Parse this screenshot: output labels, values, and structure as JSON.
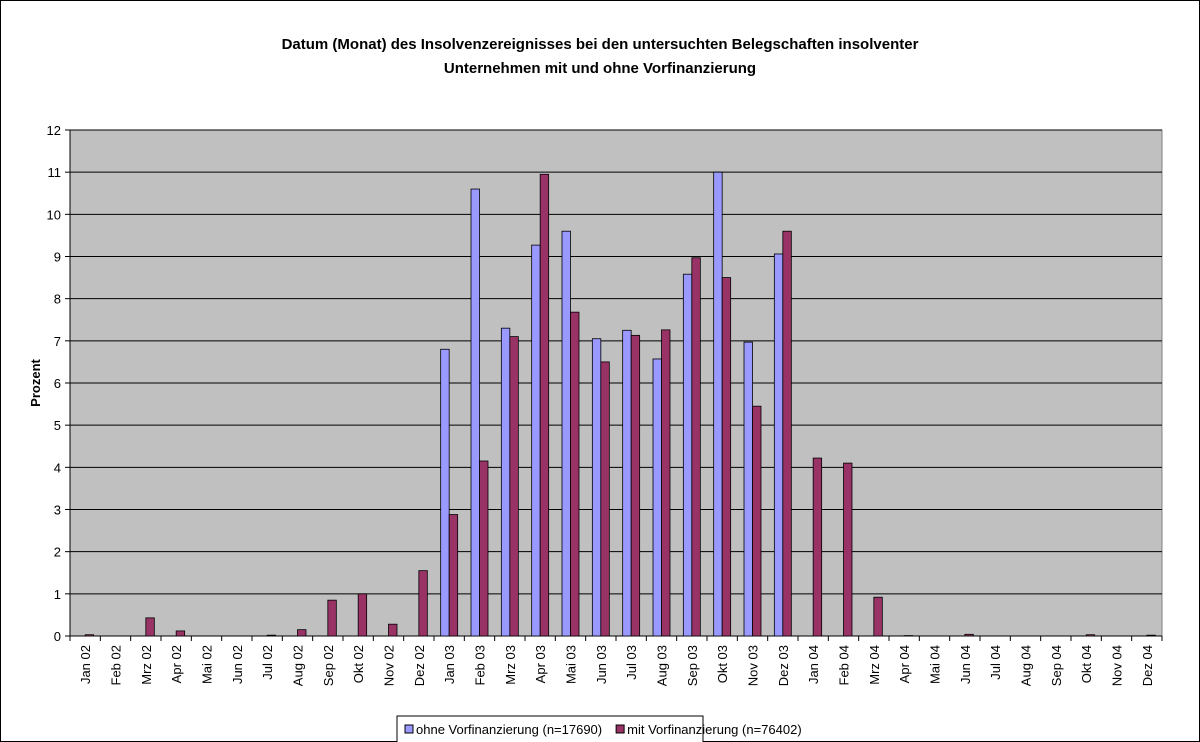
{
  "chart_data": {
    "type": "bar",
    "title": [
      "Datum (Monat) des Insolvenzereignisses bei den untersuchten Belegschaften insolventer",
      "Unternehmen mit und ohne Vorfinanzierung"
    ],
    "y_label": "Prozent",
    "categories": [
      "Jan 02",
      "Feb 02",
      "Mrz 02",
      "Apr 02",
      "Mai 02",
      "Jun 02",
      "Jul 02",
      "Aug 02",
      "Sep 02",
      "Okt 02",
      "Nov 02",
      "Dez 02",
      "Jan 03",
      "Feb 03",
      "Mrz 03",
      "Apr 03",
      "Mai 03",
      "Jun 03",
      "Jul 03",
      "Aug 03",
      "Sep 03",
      "Okt 03",
      "Nov 03",
      "Dez 03",
      "Jan 04",
      "Feb 04",
      "Mrz 04",
      "Apr 04",
      "Mai 04",
      "Jun 04",
      "Jul 04",
      "Aug 04",
      "Sep 04",
      "Okt 04",
      "Nov 04",
      "Dez 04"
    ],
    "series": [
      {
        "name": "ohne Vorfinanzierung (n=17690)",
        "color": "#9999ff",
        "values": [
          0,
          0,
          0,
          0,
          0,
          0,
          0,
          0,
          0,
          0,
          0,
          0,
          6.8,
          10.6,
          7.3,
          9.27,
          9.6,
          7.05,
          7.25,
          6.57,
          8.58,
          11.0,
          6.97,
          9.06,
          0,
          0,
          0,
          0,
          0,
          0,
          0,
          0,
          0,
          0,
          0,
          0
        ]
      },
      {
        "name": "mit Vorfinanzierung (n=76402)",
        "color": "#993366",
        "values": [
          0.03,
          0,
          0.43,
          0.12,
          0,
          0,
          0.02,
          0.15,
          0.85,
          1.0,
          0.28,
          1.55,
          2.88,
          4.15,
          7.1,
          10.95,
          7.68,
          6.5,
          7.13,
          7.26,
          8.97,
          8.5,
          5.45,
          9.6,
          4.22,
          4.1,
          0.92,
          0.01,
          0,
          0.04,
          0,
          0,
          0,
          0.03,
          0,
          0.02
        ]
      }
    ],
    "ylim": [
      0,
      12
    ],
    "yticks": [
      0,
      1,
      2,
      3,
      4,
      5,
      6,
      7,
      8,
      9,
      10,
      11,
      12
    ],
    "grid": true,
    "plot_background": "#c0c0c0",
    "legend": "bottom"
  }
}
